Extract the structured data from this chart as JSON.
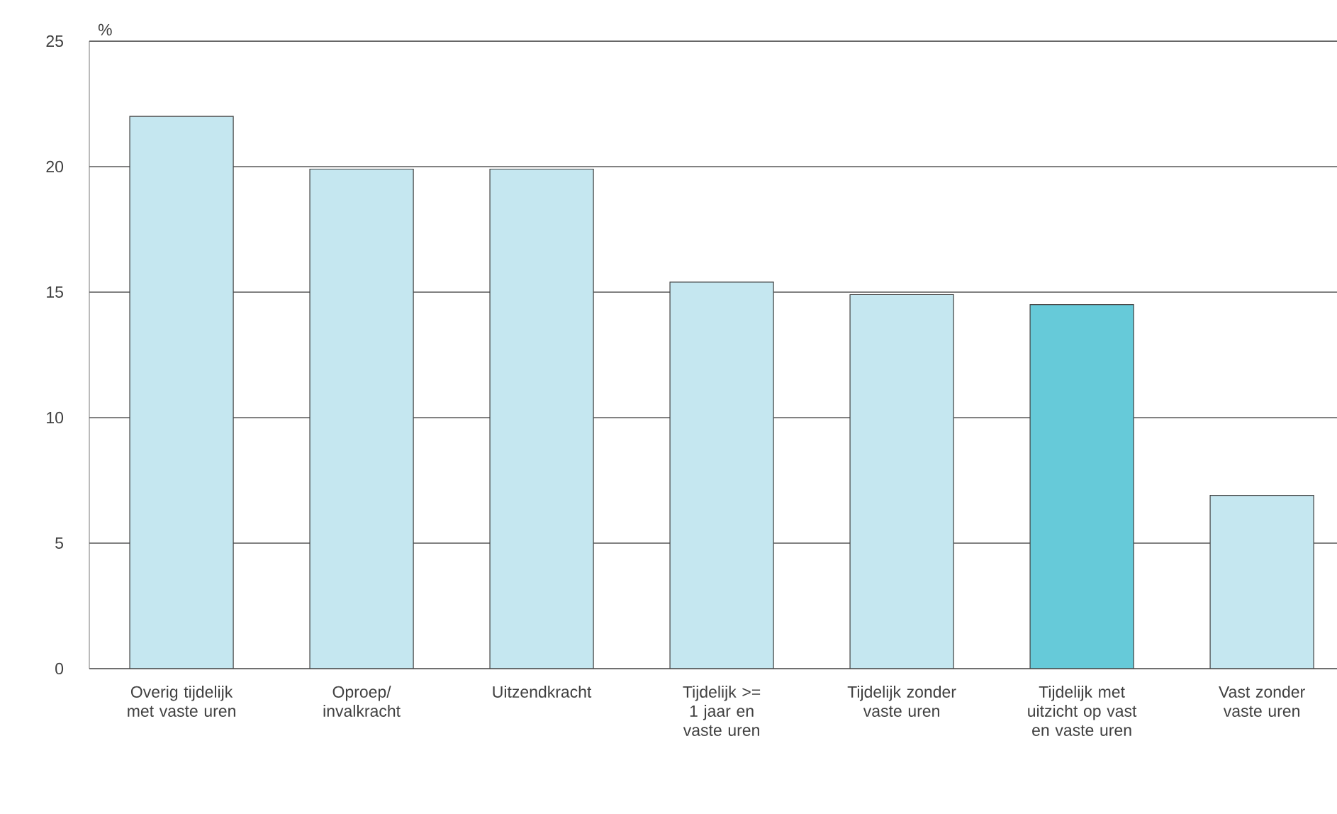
{
  "chart_data": {
    "type": "bar",
    "ylabel": "%",
    "categories": [
      "Overig tijdelijk met vaste uren",
      "Oproep/ invalkracht",
      "Uitzendkracht",
      "Tijdelijk >= 1 jaar en vaste uren",
      "Tijdelijk zonder vaste uren",
      "Tijdelijk met uitzicht op vast en vaste uren",
      "Vast zonder vaste uren"
    ],
    "values": [
      22.0,
      19.9,
      19.9,
      15.4,
      14.9,
      14.5,
      6.9
    ],
    "colors": [
      "#c5e7f0",
      "#c5e7f0",
      "#c5e7f0",
      "#c5e7f0",
      "#c5e7f0",
      "#66cad9",
      "#c5e7f0"
    ],
    "ylim": [
      0,
      25
    ],
    "yticks": [
      0,
      5,
      10,
      15,
      20,
      25
    ],
    "grid": "y"
  }
}
